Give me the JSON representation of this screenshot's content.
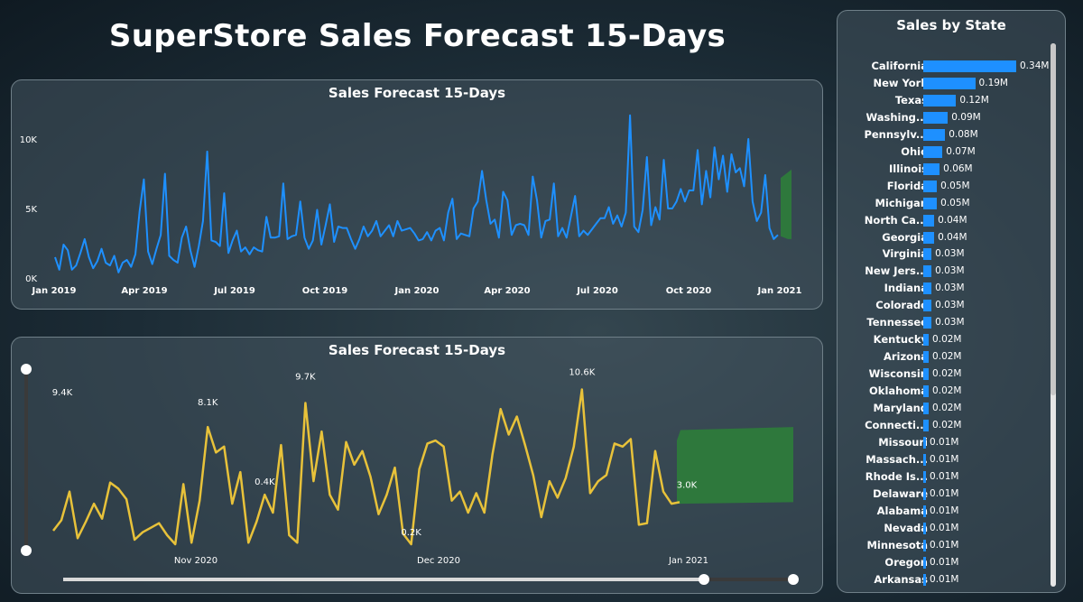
{
  "page_title": "SuperStore Sales Forecast 15-Days",
  "colors": {
    "history": "#1e90ff",
    "zoom_line": "#e8c23a",
    "forecast": "#2e7d3a",
    "bar": "#1e90ff"
  },
  "top_chart": {
    "title": "Sales Forecast 15-Days",
    "y_ticks": [
      "10K",
      "5K",
      "0K"
    ],
    "x_ticks": [
      "Jan 2019",
      "Apr 2019",
      "Jul 2019",
      "Oct 2019",
      "Jan 2020",
      "Apr 2020",
      "Jul 2020",
      "Oct 2020",
      "Jan 2021"
    ]
  },
  "bottom_chart": {
    "title": "Sales Forecast 15-Days",
    "x_ticks": [
      "Nov 2020",
      "Dec 2020",
      "Jan 2021"
    ],
    "data_labels": [
      "9.4K",
      "8.1K",
      "9.7K",
      "10.6K",
      "0.4K",
      "0.2K",
      "3.0K"
    ]
  },
  "chart_data": [
    {
      "type": "line",
      "title": "Sales Forecast 15-Days",
      "x_range": [
        "2019-01-01",
        "2020-12-30"
      ],
      "ylim": [
        0,
        11000
      ],
      "series": [
        {
          "values": [
            1500,
            600,
            2400,
            2000,
            600,
            900,
            1800,
            2800,
            1500,
            700,
            1200,
            2100,
            1100,
            900,
            1600,
            400,
            1100,
            1300,
            800,
            1700,
            4800,
            7100,
            1900,
            1000,
            2100,
            3100,
            7500,
            1600,
            1300,
            1100,
            2900,
            3700,
            2000,
            800,
            2300,
            4100,
            9100,
            2700,
            2600,
            2300,
            6100,
            1800,
            2700,
            3400,
            1900,
            2200,
            1700,
            2200,
            2000,
            1900,
            4400,
            2900,
            2900,
            3000,
            6800,
            2800,
            3000,
            3100,
            5500,
            2900,
            2100,
            2700,
            4900,
            2400,
            3800,
            5300,
            2600,
            3700,
            3600,
            3600,
            2800,
            2100,
            2800,
            3700,
            3000,
            3400,
            4100,
            3000,
            3400,
            3800,
            3000,
            4100,
            3400,
            3500,
            3600,
            3200,
            2700,
            2800,
            3300,
            2700,
            3400,
            3600,
            2700,
            4700,
            5700,
            2800,
            3200,
            3100,
            3000,
            5000,
            5500,
            7700,
            5600,
            3900,
            4200,
            2900,
            6200,
            5600,
            3100,
            3800,
            3900,
            3800,
            3100,
            7300,
            5600,
            2900,
            4100,
            4200,
            6800,
            3000,
            3600,
            2900,
            4400,
            5900,
            3000,
            3400,
            3100,
            3500,
            3900,
            4300,
            4300,
            5100,
            3900,
            4500,
            3700,
            4700,
            11700,
            3700,
            3300,
            4900,
            8700,
            3800,
            5100,
            4200,
            8500,
            5000,
            5000,
            5500,
            6400,
            5500,
            6300,
            6300,
            9200,
            5300,
            7700,
            5800,
            9400,
            7100,
            8800,
            6200,
            8900,
            7600,
            7900,
            6600,
            10000,
            5500,
            4100,
            4700,
            7400,
            3600,
            2800,
            3100
          ]
        },
        {
          "name": "Forecast",
          "type": "area",
          "x_range": [
            "2020-12-31",
            "2021-01-14"
          ],
          "values_upper": [
            7200,
            7600,
            7800
          ],
          "values_lower": [
            3000,
            2800,
            2800
          ]
        }
      ]
    },
    {
      "type": "line",
      "title": "Sales Forecast 15-Days",
      "x_range": [
        "2020-10-13",
        "2020-12-30"
      ],
      "ylim": [
        0,
        11800
      ],
      "series": [
        {
          "values": [
            1200,
            1900,
            3800,
            700,
            1800,
            3000,
            2000,
            4400,
            4000,
            3300,
            600,
            1100,
            1400,
            1700,
            900,
            300,
            4300,
            400,
            3200,
            8100,
            6400,
            6800,
            3000,
            5100,
            400,
            1800,
            3600,
            2400,
            6900,
            900,
            400,
            9700,
            4500,
            7800,
            3600,
            2600,
            7100,
            5600,
            6500,
            4800,
            2300,
            3600,
            5400,
            1000,
            300,
            5300,
            7000,
            7200,
            6800,
            3200,
            3800,
            2400,
            3700,
            2400,
            6300,
            9300,
            7600,
            8800,
            6900,
            4900,
            2100,
            4500,
            3400,
            4700,
            6800,
            10600,
            3700,
            4500,
            4900,
            7000,
            6800,
            7300,
            1600,
            1700,
            6500,
            3800,
            3000,
            3100
          ]
        },
        {
          "name": "Forecast",
          "type": "area",
          "x_range": [
            "2020-12-31",
            "2021-01-14"
          ],
          "values_upper": [
            7200,
            7900,
            8100
          ],
          "values_lower": [
            3000,
            3000,
            3100
          ]
        }
      ]
    },
    {
      "type": "bar",
      "title": "Sales by State",
      "categories": [
        "California",
        "New York",
        "Texas",
        "Washing...",
        "Pennsylv...",
        "Ohio",
        "Illinois",
        "Florida",
        "Michigan",
        "North Ca...",
        "Georgia",
        "Virginia",
        "New Jers...",
        "Indiana",
        "Colorado",
        "Tennessee",
        "Kentucky",
        "Arizona",
        "Wisconsin",
        "Oklahoma",
        "Maryland",
        "Connecti...",
        "Missouri",
        "Massach...",
        "Rhode Is...",
        "Delaware",
        "Alabama",
        "Nevada",
        "Minnesota",
        "Oregon",
        "Arkansas"
      ],
      "values": [
        0.34,
        0.19,
        0.12,
        0.09,
        0.08,
        0.07,
        0.06,
        0.05,
        0.05,
        0.04,
        0.04,
        0.03,
        0.03,
        0.03,
        0.03,
        0.03,
        0.02,
        0.02,
        0.02,
        0.02,
        0.02,
        0.02,
        0.01,
        0.01,
        0.01,
        0.01,
        0.01,
        0.01,
        0.01,
        0.01,
        0.01
      ],
      "value_labels": [
        "0.34M",
        "0.19M",
        "0.12M",
        "0.09M",
        "0.08M",
        "0.07M",
        "0.06M",
        "0.05M",
        "0.05M",
        "0.04M",
        "0.04M",
        "0.03M",
        "0.03M",
        "0.03M",
        "0.03M",
        "0.03M",
        "0.02M",
        "0.02M",
        "0.02M",
        "0.02M",
        "0.02M",
        "0.02M",
        "0.01M",
        "0.01M",
        "0.01M",
        "0.01M",
        "0.01M",
        "0.01M",
        "0.01M",
        "0.01M",
        "0.01M"
      ]
    }
  ],
  "state_panel": {
    "title": "Sales by State"
  }
}
